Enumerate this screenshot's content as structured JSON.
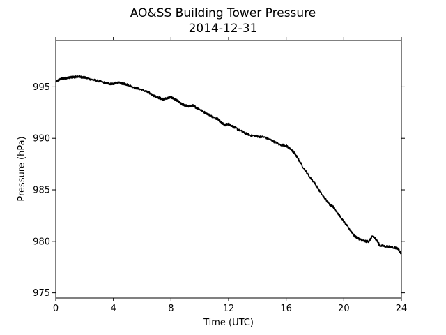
{
  "chart_data": {
    "type": "line",
    "title": "AO&SS Building Tower Pressure",
    "subtitle": "2014-12-31",
    "xlabel": "Time (UTC)",
    "ylabel": "Pressure (hPa)",
    "xlim": [
      0,
      24
    ],
    "ylim": [
      974.5,
      999.5
    ],
    "xticks": [
      0,
      4,
      8,
      12,
      16,
      20,
      24
    ],
    "yticks": [
      975,
      980,
      985,
      990,
      995
    ],
    "grid": false,
    "legend": "none",
    "line_color": "#000000",
    "series": [
      {
        "x": [
          0,
          0.25,
          0.5,
          0.75,
          1.0,
          1.25,
          1.5,
          1.75,
          2.0,
          2.5,
          3.0,
          3.5,
          3.75,
          4.0,
          4.25,
          4.5,
          4.75,
          5.0,
          5.5,
          6.0,
          6.5,
          7.0,
          7.25,
          7.5,
          7.75,
          8.0,
          8.25,
          8.5,
          8.75,
          9.0,
          9.25,
          9.5,
          9.75,
          10.0,
          10.5,
          11.0,
          11.25,
          11.5,
          11.75,
          12.0,
          12.25,
          12.5,
          13.0,
          13.5,
          14.0,
          14.5,
          15.0,
          15.5,
          16.0,
          16.25,
          16.5,
          16.75,
          17.0,
          17.5,
          18.0,
          18.5,
          19.0,
          19.25,
          19.5,
          20.0,
          20.5,
          20.75,
          21.0,
          21.25,
          21.5,
          21.75,
          22.0,
          22.25,
          22.5,
          23.0,
          23.5,
          23.75,
          24.0
        ],
        "y": [
          995.5,
          995.7,
          995.8,
          995.85,
          995.9,
          995.95,
          996.0,
          995.95,
          995.9,
          995.7,
          995.55,
          995.35,
          995.3,
          995.3,
          995.4,
          995.35,
          995.3,
          995.2,
          994.9,
          994.7,
          994.4,
          994.0,
          993.9,
          993.8,
          993.9,
          994.0,
          993.8,
          993.6,
          993.3,
          993.2,
          993.1,
          993.2,
          993.0,
          992.8,
          992.4,
          992.0,
          991.9,
          991.5,
          991.3,
          991.4,
          991.2,
          991.0,
          990.6,
          990.3,
          990.2,
          990.1,
          989.8,
          989.4,
          989.3,
          989.0,
          988.7,
          988.2,
          987.6,
          986.5,
          985.6,
          984.5,
          983.6,
          983.4,
          982.9,
          981.9,
          981.0,
          980.5,
          980.3,
          980.1,
          980.0,
          980.0,
          980.5,
          980.2,
          979.6,
          979.5,
          979.4,
          979.3,
          978.8
        ]
      }
    ]
  }
}
